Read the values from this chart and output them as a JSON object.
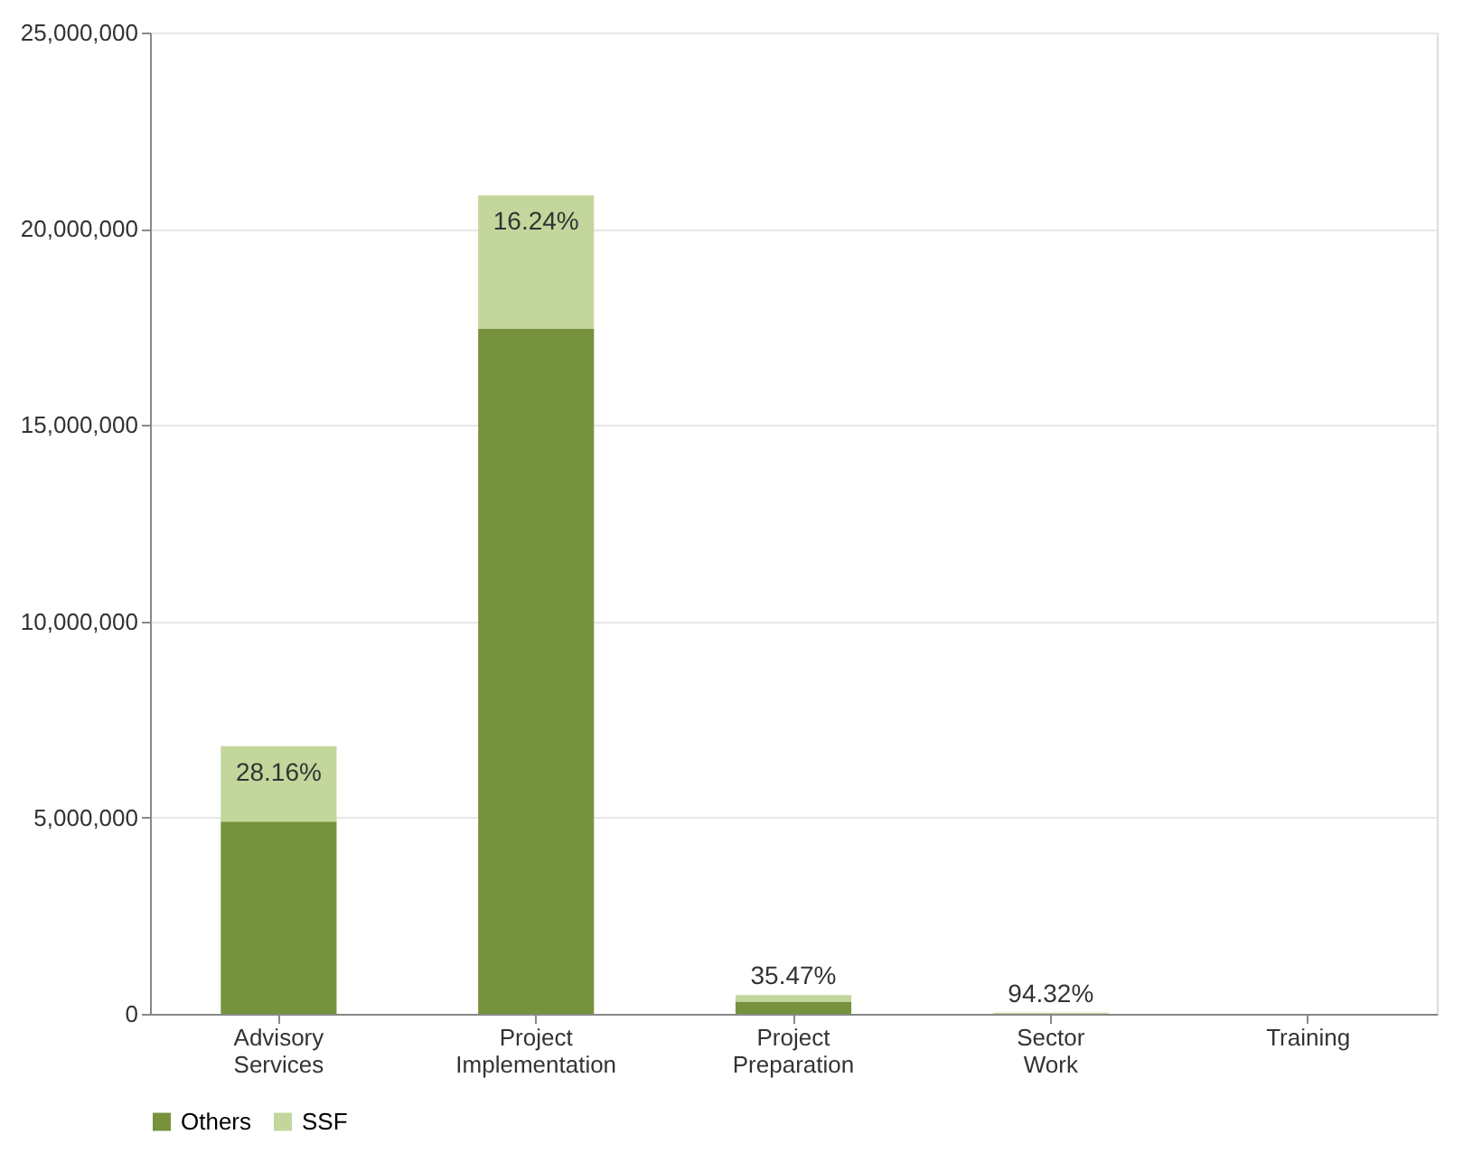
{
  "chart_data": {
    "type": "bar",
    "stacked": true,
    "categories": [
      "Advisory Services",
      "Project Implementation",
      "Project Preparation",
      "Sector Work",
      "Training"
    ],
    "series": [
      {
        "name": "Others",
        "color": "#76923c",
        "values": [
          4900000,
          17450000,
          310000,
          0,
          0
        ]
      },
      {
        "name": "SSF",
        "color": "#c3d69b",
        "values": [
          1920000,
          3400000,
          170000,
          30000,
          0
        ]
      }
    ],
    "annotations": [
      {
        "text": "28.16%",
        "x": "Advisory Services",
        "y": 6820000
      },
      {
        "text": "16.24%",
        "x": "Project Implementation",
        "y": 20850000
      },
      {
        "text": "35.47%",
        "x": "Project Preparation",
        "y": 480000
      },
      {
        "text": "94.32%",
        "x": "Sector Work",
        "y": 30000
      }
    ],
    "ylim": [
      0,
      25000000
    ],
    "yticks": [
      0,
      {
        "value": 5000000,
        "label": "5,000,000"
      },
      {
        "value": 10000000,
        "label": "10,000,000"
      },
      {
        "value": 15000000,
        "label": "15,000,000"
      },
      {
        "value": 20000000,
        "label": "20,000,000"
      },
      {
        "value": 25000000,
        "label": "25,000,000"
      }
    ],
    "grid": "y",
    "legend": "bottom"
  }
}
